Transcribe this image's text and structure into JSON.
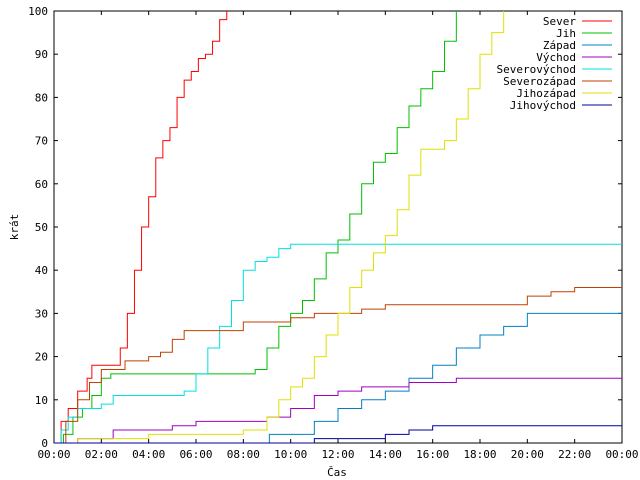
{
  "chart_data": {
    "type": "line",
    "xlabel": "Čas",
    "ylabel": "krát",
    "xlim": [
      0,
      24
    ],
    "ylim": [
      0,
      100
    ],
    "x_tick_labels": [
      "00:00",
      "02:00",
      "04:00",
      "06:00",
      "08:00",
      "10:00",
      "12:00",
      "14:00",
      "16:00",
      "18:00",
      "20:00",
      "22:00",
      "00:00"
    ],
    "y_tick_labels": [
      "0",
      "10",
      "20",
      "30",
      "40",
      "50",
      "60",
      "70",
      "80",
      "90",
      "100"
    ],
    "legend_position": "top-right",
    "series": [
      {
        "name": "Sever",
        "color": "#ff0000",
        "x": [
          0,
          0.3,
          0.6,
          1.0,
          1.4,
          1.6,
          2.0,
          2.4,
          2.8,
          3.1,
          3.4,
          3.7,
          4.0,
          4.3,
          4.6,
          4.9,
          5.2,
          5.5,
          5.8,
          6.1,
          6.4,
          6.7,
          7.0,
          7.3
        ],
        "y": [
          0,
          5,
          8,
          12,
          15,
          18,
          18,
          18,
          22,
          30,
          40,
          50,
          57,
          66,
          70,
          73,
          80,
          84,
          86,
          89,
          90,
          93,
          98,
          100
        ]
      },
      {
        "name": "Jih",
        "color": "#00c000",
        "x": [
          0,
          0.4,
          0.8,
          1.2,
          1.6,
          2.0,
          2.4,
          3,
          4,
          5,
          6,
          7,
          8,
          8.5,
          9,
          9.5,
          10,
          10.5,
          11,
          11.5,
          12,
          12.5,
          13,
          13.5,
          14,
          14.5,
          15,
          15.5,
          16,
          16.5,
          17
        ],
        "y": [
          0,
          2,
          6,
          8,
          11,
          15,
          16,
          16,
          16,
          16,
          16,
          16,
          16,
          17,
          22,
          27,
          30,
          33,
          38,
          44,
          47,
          53,
          60,
          65,
          67,
          73,
          78,
          82,
          86,
          93,
          100
        ]
      },
      {
        "name": "Západ",
        "color": "#0080c0",
        "x": [
          0,
          9,
          9.1,
          10,
          11,
          12,
          13,
          14,
          15,
          16,
          17,
          18,
          19,
          20,
          21,
          22,
          23,
          24
        ],
        "y": [
          0,
          0,
          2,
          2,
          5,
          8,
          10,
          12,
          15,
          18,
          22,
          25,
          27,
          30,
          30,
          30,
          30,
          30
        ]
      },
      {
        "name": "Východ",
        "color": "#a000c0",
        "x": [
          0,
          1,
          2,
          2.5,
          4,
          5,
          6,
          8,
          9,
          10,
          11,
          12,
          13,
          14,
          15,
          16,
          17,
          18,
          20,
          22,
          24
        ],
        "y": [
          0,
          1,
          1,
          3,
          3,
          4,
          5,
          5,
          6,
          8,
          11,
          12,
          13,
          13,
          14,
          14,
          15,
          15,
          15,
          15,
          15
        ]
      },
      {
        "name": "Severovýchod",
        "color": "#00e0e0",
        "x": [
          0,
          0.3,
          0.6,
          1.0,
          1.5,
          2.0,
          2.5,
          3,
          4,
          5,
          5.5,
          6,
          6.5,
          7,
          7.5,
          8,
          8.5,
          9,
          9.5,
          10,
          11,
          12,
          14,
          16,
          18,
          20,
          22,
          24
        ],
        "y": [
          0,
          3,
          6,
          8,
          8,
          9,
          11,
          11,
          11,
          11,
          12,
          16,
          22,
          27,
          33,
          40,
          42,
          43,
          45,
          46,
          46,
          46,
          46,
          46,
          46,
          46,
          46,
          46
        ]
      },
      {
        "name": "Severozápad",
        "color": "#c04000",
        "x": [
          0,
          0.5,
          1.0,
          1.5,
          2.0,
          3,
          4,
          4.5,
          5,
          5.5,
          6,
          7,
          8,
          8.5,
          9,
          10,
          11,
          12,
          13,
          14,
          15,
          16,
          17,
          18,
          19,
          20,
          21,
          22,
          23,
          24
        ],
        "y": [
          0,
          5,
          10,
          14,
          17,
          19,
          20,
          21,
          24,
          26,
          26,
          26,
          28,
          28,
          28,
          29,
          30,
          30,
          31,
          32,
          32,
          32,
          32,
          32,
          32,
          34,
          35,
          36,
          36,
          36
        ]
      },
      {
        "name": "Jihozápad",
        "color": "#e0e000",
        "x": [
          0,
          1,
          2,
          3,
          4,
          5,
          6,
          7,
          8,
          9,
          9.5,
          10,
          10.5,
          11,
          11.5,
          12,
          12.5,
          13,
          13.5,
          14,
          14.5,
          15,
          15.5,
          16,
          16.5,
          17,
          17.5,
          18,
          18.5,
          19
        ],
        "y": [
          0,
          1,
          1,
          1,
          2,
          2,
          2,
          2,
          3,
          6,
          10,
          13,
          15,
          20,
          25,
          30,
          36,
          40,
          44,
          48,
          54,
          62,
          68,
          68,
          70,
          75,
          82,
          90,
          95,
          100
        ]
      },
      {
        "name": "Jihovýchod",
        "color": "#0000a0",
        "x": [
          0,
          10,
          11,
          12,
          13,
          14,
          14.8,
          15,
          16,
          17,
          18,
          20,
          22,
          24
        ],
        "y": [
          0,
          0,
          1,
          1,
          1,
          2,
          2,
          3,
          4,
          4,
          4,
          4,
          4,
          4
        ]
      }
    ]
  }
}
